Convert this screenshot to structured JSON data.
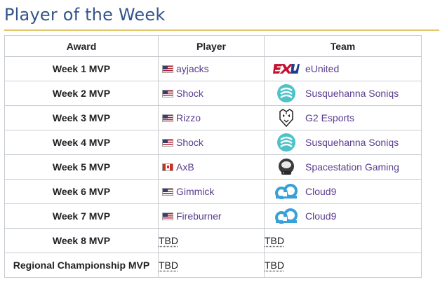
{
  "page": {
    "title": "Player of the Week"
  },
  "table": {
    "headers": {
      "award": "Award",
      "player": "Player",
      "team": "Team"
    },
    "rows": [
      {
        "award": "Week 1 MVP",
        "flag": "us-flag",
        "player": "ayjacks",
        "team": "eUnited",
        "team_logo": "eunited-logo"
      },
      {
        "award": "Week 2 MVP",
        "flag": "us-flag",
        "player": "Shock",
        "team": "Susquehanna Soniqs",
        "team_logo": "soniqs-logo"
      },
      {
        "award": "Week 3 MVP",
        "flag": "us-flag",
        "player": "Rizzo",
        "team": "G2 Esports",
        "team_logo": "g2-logo"
      },
      {
        "award": "Week 4 MVP",
        "flag": "us-flag",
        "player": "Shock",
        "team": "Susquehanna Soniqs",
        "team_logo": "soniqs-logo"
      },
      {
        "award": "Week 5 MVP",
        "flag": "ca-flag",
        "player": "AxB",
        "team": "Spacestation Gaming",
        "team_logo": "spacestation-logo"
      },
      {
        "award": "Week 6 MVP",
        "flag": "us-flag",
        "player": "Gimmick",
        "team": "Cloud9",
        "team_logo": "cloud9-logo"
      },
      {
        "award": "Week 7 MVP",
        "flag": "us-flag",
        "player": "Fireburner",
        "team": "Cloud9",
        "team_logo": "cloud9-logo"
      },
      {
        "award": "Week 8 MVP",
        "player": "TBD",
        "team": "TBD"
      },
      {
        "award": "Regional Championship MVP",
        "player": "TBD",
        "team": "TBD"
      }
    ]
  },
  "colors": {
    "link": "#5a3c8e",
    "heading": "#34558b",
    "rule": "#e2c66b",
    "border": "#c8ccd1"
  }
}
